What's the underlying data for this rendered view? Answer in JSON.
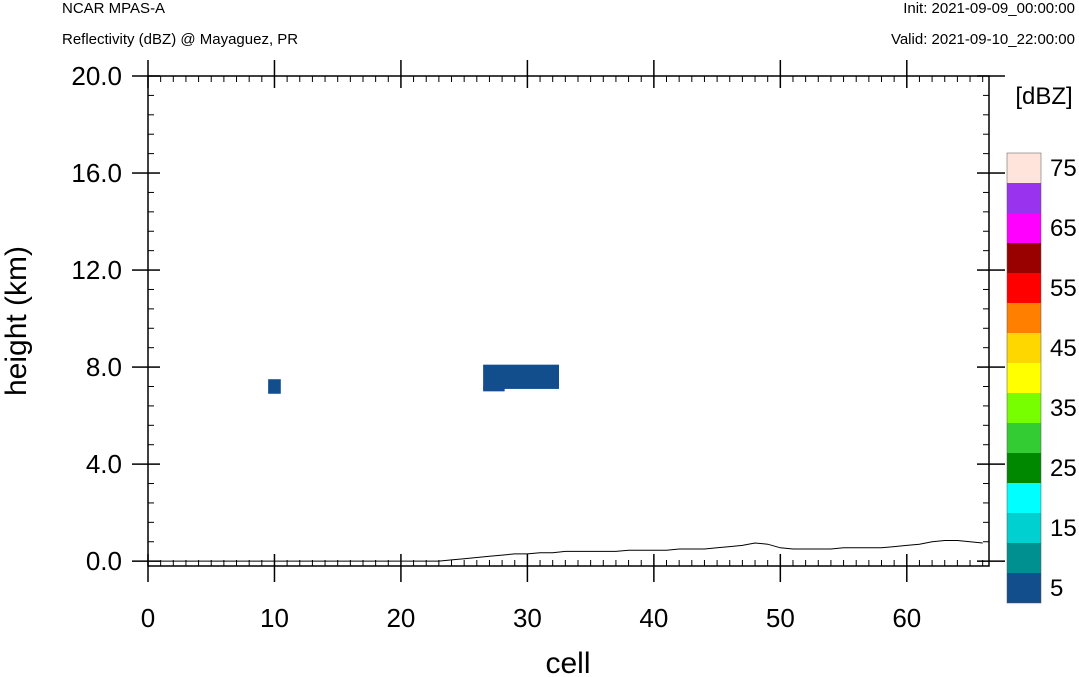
{
  "header": {
    "model": "NCAR MPAS-A",
    "subtitle": "Reflectivity (dBZ) @ Mayaguez, PR",
    "init": "Init: 2021-09-09_00:00:00",
    "valid": "Valid: 2021-09-10_22:00:00"
  },
  "chart_data": {
    "type": "heatmap",
    "xlabel": "cell",
    "ylabel": "height (km)",
    "xlim": [
      0,
      66.5
    ],
    "ylim": [
      -0.2,
      20.0
    ],
    "xticks": [
      0,
      10,
      20,
      30,
      40,
      50,
      60
    ],
    "yticks": [
      0.0,
      4.0,
      8.0,
      12.0,
      16.0,
      20.0
    ],
    "xtick_labels": [
      "0",
      "10",
      "20",
      "30",
      "40",
      "50",
      "60"
    ],
    "ytick_labels": [
      "0.0",
      "4.0",
      "8.0",
      "12.0",
      "16.0",
      "20.0"
    ],
    "reflectivity_patches": [
      {
        "x0": 9.5,
        "x1": 10.5,
        "y0": 6.9,
        "y1": 7.5,
        "dbz": 5
      },
      {
        "x0": 26.5,
        "x1": 32.5,
        "y0": 7.1,
        "y1": 8.1,
        "dbz": 5
      },
      {
        "x0": 26.5,
        "x1": 28.2,
        "y0": 7.0,
        "y1": 7.2,
        "dbz": 5
      }
    ],
    "terrain": {
      "x": [
        0.5,
        23,
        24,
        25,
        26,
        27,
        28,
        29,
        30,
        31,
        32,
        33,
        34,
        35,
        36,
        37,
        38,
        39,
        40,
        41,
        42,
        43,
        44,
        45,
        46,
        47,
        48,
        49,
        50,
        51,
        52,
        53,
        54,
        55,
        56,
        57,
        58,
        59,
        60,
        61,
        62,
        63,
        64,
        65,
        66
      ],
      "y": [
        0.0,
        0.0,
        0.05,
        0.1,
        0.15,
        0.2,
        0.25,
        0.3,
        0.3,
        0.35,
        0.35,
        0.4,
        0.4,
        0.4,
        0.4,
        0.4,
        0.45,
        0.45,
        0.45,
        0.45,
        0.5,
        0.5,
        0.5,
        0.55,
        0.6,
        0.65,
        0.75,
        0.7,
        0.55,
        0.5,
        0.5,
        0.5,
        0.5,
        0.55,
        0.55,
        0.55,
        0.55,
        0.6,
        0.65,
        0.7,
        0.8,
        0.85,
        0.85,
        0.8,
        0.75
      ]
    },
    "colorbar": {
      "title": "[dBZ]",
      "colors": [
        "#124d8c",
        "#009090",
        "#00d0d0",
        "#00ffff",
        "#008800",
        "#33cc33",
        "#77ff00",
        "#ffff00",
        "#ffd700",
        "#ff7f00",
        "#ff0000",
        "#990000",
        "#ff00ff",
        "#9933ee",
        "#ffe4dc"
      ],
      "labels": [
        "5",
        "15",
        "25",
        "35",
        "45",
        "55",
        "65",
        "75"
      ]
    }
  }
}
